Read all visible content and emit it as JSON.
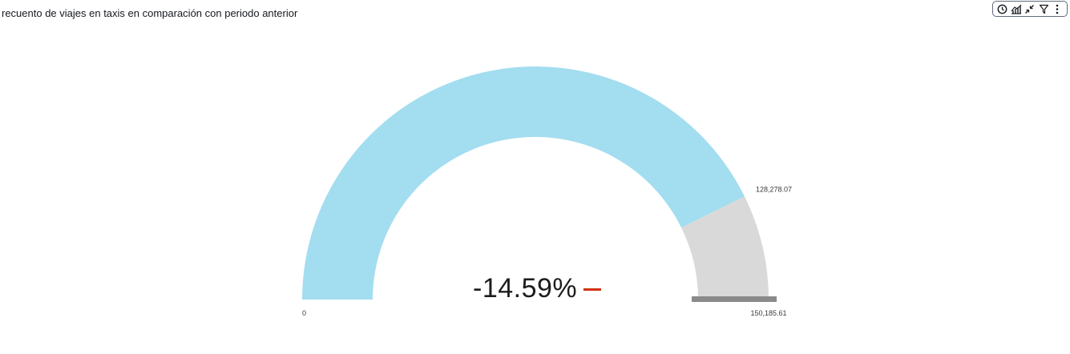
{
  "title": "recuento de viajes en taxis en comparación con periodo anterior",
  "toolbar": {
    "icons": [
      "clock-icon",
      "forecast-icon",
      "collapse-icon",
      "filter-icon",
      "more-options-icon"
    ]
  },
  "chart_data": {
    "type": "gauge",
    "value": 128278.07,
    "value_label": "128,278.07",
    "min": 0,
    "min_label": "0",
    "max": 150185.61,
    "max_label": "150,185.61",
    "comparison_label": "-14.59%",
    "trend": "down",
    "colors": {
      "filled": "#a3ddf0",
      "remaining": "#d9d9d9",
      "target_marker": "#8a8a8a",
      "trend": "#d13212"
    }
  }
}
